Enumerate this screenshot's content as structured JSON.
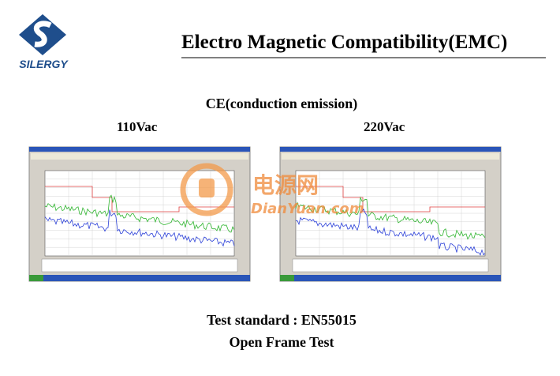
{
  "header": {
    "logo_text": "SILERGY",
    "title": "Electro Magnetic Compatibility(EMC)"
  },
  "section": {
    "title": "CE(conduction emission)",
    "left_label": "110Vac",
    "right_label": "220Vac"
  },
  "watermark": {
    "chinese": "电源网",
    "site": "DianYuan.com"
  },
  "footer": {
    "standard": "Test standard : EN55015",
    "note": "Open Frame Test"
  }
}
